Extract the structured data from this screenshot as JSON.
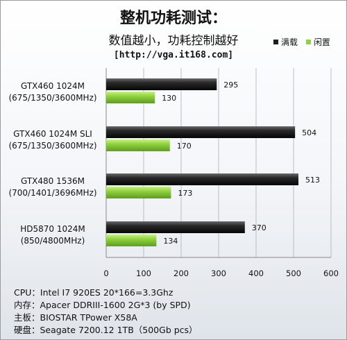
{
  "title": "整机功耗测试：",
  "subtitle": "数值越小，功耗控制越好",
  "source": "[http://vga.it168.com]",
  "specs": [
    "CPU：Intel I7 920ES 20*166=3.3Ghz",
    "内存：Apacer DDRIII-1600 2G*3 (by SPD)",
    "主板：BIOSTAR TPower X58A",
    "硬盘：Seagate 7200.12 1TB（500Gb pcs）"
  ],
  "chart_data": {
    "type": "bar",
    "orientation": "horizontal",
    "categories": [
      [
        "GTX460 1024M",
        "(675/1350/3600MHz)"
      ],
      [
        "GTX460 1024M SLI",
        "(675/1350/3600MHz)"
      ],
      [
        "GTX480 1536M",
        "(700/1401/3696MHz)"
      ],
      [
        "HD5870 1024M",
        "(850/4800MHz)"
      ]
    ],
    "series": [
      {
        "name": "满载",
        "values": [
          295,
          504,
          513,
          370
        ],
        "color": "#1e1e1e"
      },
      {
        "name": "闲置",
        "values": [
          130,
          170,
          173,
          134
        ],
        "color": "#8fd13f"
      }
    ],
    "xlim": [
      0,
      600
    ],
    "xticks": [
      0,
      100,
      200,
      300,
      400,
      500,
      600
    ],
    "grid": true,
    "legend": "top-right"
  }
}
